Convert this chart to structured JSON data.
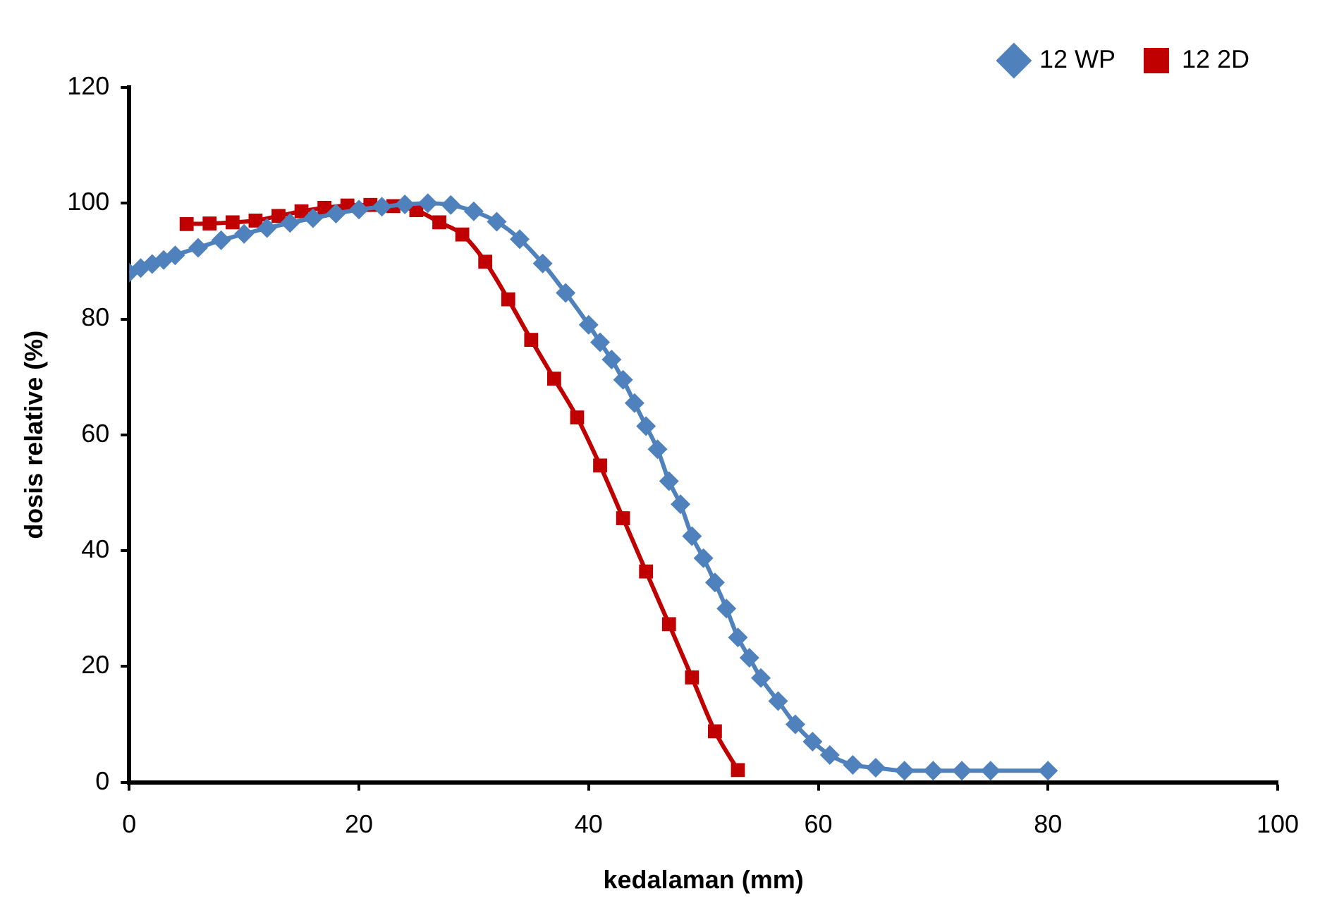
{
  "chart_data": {
    "type": "line",
    "xlabel": "kedalaman (mm)",
    "ylabel": "dosis relative (%)",
    "xlim": [
      0,
      100
    ],
    "xticks": [
      0,
      20,
      40,
      60,
      80,
      100
    ],
    "ylim": [
      0,
      120
    ],
    "yticks": [
      0,
      20,
      40,
      60,
      80,
      100,
      120
    ],
    "grid": false,
    "legend": "top right",
    "series": [
      {
        "name": "12 WP",
        "color": "#4f81bd",
        "marker": "diamond",
        "x": [
          0,
          1,
          2,
          3,
          4,
          6,
          8,
          10,
          12,
          14,
          16,
          18,
          20,
          22,
          24,
          26,
          28,
          30,
          32,
          34,
          36,
          38,
          40,
          41,
          42,
          43,
          44,
          45,
          46,
          47,
          48,
          49,
          50,
          51,
          52,
          53,
          54,
          55,
          56.5,
          58,
          59.5,
          61,
          63,
          65,
          67.5,
          70,
          72.5,
          75,
          80
        ],
        "values": [
          88,
          88.8,
          89.5,
          90.2,
          91,
          92.3,
          93.6,
          94.7,
          95.7,
          96.6,
          97.4,
          98.2,
          98.9,
          99.4,
          99.8,
          100,
          99.7,
          98.6,
          96.8,
          93.8,
          89.6,
          84.5,
          79,
          76,
          73,
          69.5,
          65.5,
          61.5,
          57.5,
          52,
          48,
          42.5,
          38.7,
          34.5,
          30,
          25,
          21.5,
          18,
          14,
          10,
          7,
          4.7,
          3,
          2.5,
          2,
          2,
          2,
          2,
          2
        ]
      },
      {
        "name": "12 2D",
        "color": "#c00000",
        "marker": "square",
        "x": [
          5,
          7,
          9,
          11,
          13,
          15,
          17,
          19,
          21,
          23,
          25,
          27,
          29,
          31,
          33,
          35,
          37,
          39,
          41,
          43,
          45,
          47,
          49,
          51,
          53
        ],
        "values": [
          96.4,
          96.5,
          96.7,
          97,
          97.8,
          98.6,
          99.2,
          99.6,
          99.7,
          99.5,
          98.8,
          96.7,
          94.6,
          89.9,
          83.4,
          76.4,
          69.7,
          63,
          54.7,
          45.6,
          36.4,
          27.3,
          18.1,
          8.8,
          2.1
        ]
      }
    ]
  }
}
